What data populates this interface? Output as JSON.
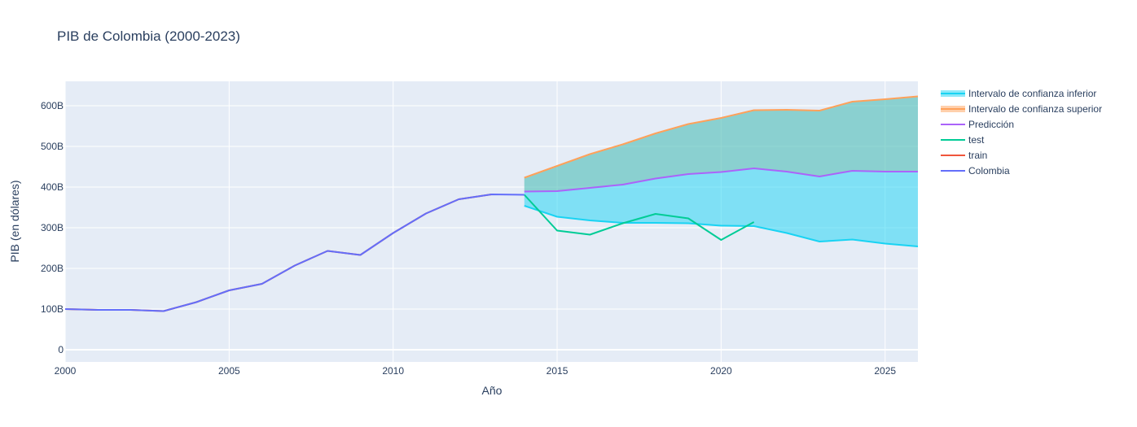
{
  "chart_data": {
    "type": "line",
    "title": "PIB de Colombia (2000-2023)",
    "xlabel": "Año",
    "ylabel": "PIB (en dólares)",
    "xlim": [
      2000,
      2026
    ],
    "ylim": [
      -30,
      660
    ],
    "x_ticks": [
      2000,
      2005,
      2010,
      2015,
      2020,
      2025
    ],
    "y_ticks": [
      0,
      100,
      200,
      300,
      400,
      500,
      600
    ],
    "y_tick_labels": [
      "0",
      "100B",
      "200B",
      "300B",
      "400B",
      "500B",
      "600B"
    ],
    "y_unit": "billions USD",
    "legend_position": "top-right outside",
    "grid": true,
    "series": [
      {
        "name": "Colombia",
        "color": "#636efa",
        "x": [
          2000,
          2001,
          2002,
          2003,
          2004,
          2005,
          2006,
          2007,
          2008,
          2009,
          2010,
          2011,
          2012,
          2013,
          2014
        ],
        "values": [
          100,
          98,
          98,
          95,
          117,
          146,
          162,
          207,
          243,
          233,
          287,
          335,
          370,
          382,
          381
        ]
      },
      {
        "name": "train",
        "color": "#ef553b",
        "x": [
          2000,
          2001,
          2002,
          2003,
          2004,
          2005,
          2006,
          2007,
          2008,
          2009,
          2010,
          2011,
          2012,
          2013
        ],
        "values": [
          100,
          98,
          98,
          95,
          117,
          146,
          162,
          207,
          243,
          233,
          287,
          335,
          370,
          382
        ]
      },
      {
        "name": "test",
        "color": "#00cc96",
        "x": [
          2014,
          2015,
          2016,
          2017,
          2018,
          2019,
          2020,
          2021
        ],
        "values": [
          381,
          293,
          283,
          311,
          334,
          323,
          270,
          314
        ]
      },
      {
        "name": "Predicción",
        "color": "#ab63fa",
        "x": [
          2014,
          2015,
          2016,
          2017,
          2018,
          2019,
          2020,
          2021,
          2022,
          2023,
          2024,
          2025,
          2026
        ],
        "values": [
          389,
          390,
          398,
          406,
          421,
          432,
          437,
          446,
          438,
          426,
          440,
          438,
          438
        ]
      },
      {
        "name": "Intervalo de confianza superior",
        "color": "#ffa15a",
        "x": [
          2014,
          2015,
          2016,
          2017,
          2018,
          2019,
          2020,
          2021,
          2022,
          2023,
          2024,
          2025,
          2026
        ],
        "values": [
          423,
          452,
          481,
          505,
          532,
          555,
          570,
          589,
          590,
          588,
          610,
          616,
          623
        ]
      },
      {
        "name": "Intervalo de confianza inferior",
        "color": "#19d3f3",
        "x": [
          2014,
          2015,
          2016,
          2017,
          2018,
          2019,
          2020,
          2021,
          2022,
          2023,
          2024,
          2025,
          2026
        ],
        "values": [
          354,
          327,
          318,
          312,
          312,
          311,
          305,
          304,
          287,
          266,
          271,
          261,
          254
        ]
      }
    ],
    "legend_order": [
      "Intervalo de confianza inferior",
      "Intervalo de confianza superior",
      "Predicción",
      "test",
      "train",
      "Colombia"
    ]
  }
}
